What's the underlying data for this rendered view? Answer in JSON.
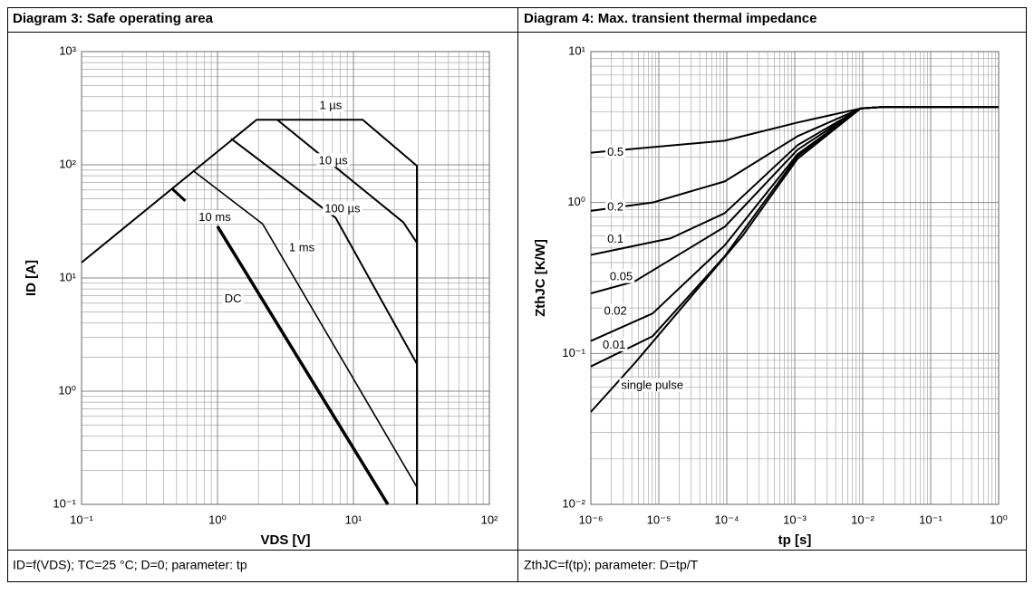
{
  "chart_data": [
    {
      "type": "line",
      "title": "Diagram 3: Safe operating area",
      "xlabel": "VDS [V]",
      "ylabel": "ID [A]",
      "xscale": "log",
      "yscale": "log",
      "grid": true,
      "xlim": [
        0.1,
        100
      ],
      "ylim": [
        0.1,
        1000
      ],
      "xticks": [
        {
          "value": 0.1,
          "label": "10⁻¹"
        },
        {
          "value": 1,
          "label": "10⁰"
        },
        {
          "value": 10,
          "label": "10¹"
        },
        {
          "value": 100,
          "label": "10²"
        }
      ],
      "yticks": [
        {
          "value": 0.1,
          "label": "10⁻¹"
        },
        {
          "value": 1,
          "label": "10⁰"
        },
        {
          "value": 10,
          "label": "10¹"
        },
        {
          "value": 100,
          "label": "10²"
        },
        {
          "value": 1000,
          "label": "10³"
        }
      ],
      "series": [
        {
          "name": "1 µs",
          "color": "#000000",
          "line_width": 2,
          "x": [
            0.1,
            1.94,
            11.7,
            29.3,
            29.3
          ],
          "values": [
            13.7,
            250,
            250,
            98,
            0.1
          ],
          "label_at": [
            6.8,
            331
          ]
        },
        {
          "name": "10 µs",
          "color": "#000000",
          "line_width": 2,
          "x": [
            2.75,
            23.3,
            29.3
          ],
          "values": [
            250,
            31,
            20.5
          ],
          "label_at": [
            7.1,
            108
          ]
        },
        {
          "name": "100 µs",
          "color": "#000000",
          "line_width": 2,
          "x": [
            1.26,
            7.4,
            29.3
          ],
          "values": [
            170,
            34,
            1.74
          ],
          "label_at": [
            8.3,
            40.5
          ]
        },
        {
          "name": "1 ms",
          "color": "#000000",
          "line_width": 1.6,
          "x": [
            0.66,
            2.15,
            29.3
          ],
          "values": [
            89,
            30,
            0.142
          ],
          "label_at": [
            4.17,
            18.4
          ]
        },
        {
          "name": "10 ms",
          "color": "#000000",
          "line_width": 3,
          "x": [
            0.46,
            0.58
          ],
          "values": [
            62,
            48
          ],
          "label_at": [
            0.955,
            34
          ]
        },
        {
          "name": "DC",
          "color": "#000000",
          "line_width": 3.5,
          "x": [
            1.0,
            17.9
          ],
          "values": [
            28.6,
            0.1
          ],
          "label_at": [
            1.3,
            6.5
          ]
        }
      ]
    },
    {
      "type": "line",
      "title": "Diagram 4: Max. transient thermal impedance",
      "xlabel": "tp [s]",
      "ylabel": "ZthJC [K/W]",
      "xscale": "log",
      "yscale": "log",
      "grid": true,
      "xlim": [
        1e-06,
        1
      ],
      "ylim": [
        0.01,
        10
      ],
      "xticks": [
        {
          "value": 1e-06,
          "label": "10⁻⁶"
        },
        {
          "value": 1e-05,
          "label": "10⁻⁵"
        },
        {
          "value": 0.0001,
          "label": "10⁻⁴"
        },
        {
          "value": 0.001,
          "label": "10⁻³"
        },
        {
          "value": 0.01,
          "label": "10⁻²"
        },
        {
          "value": 0.1,
          "label": "10⁻¹"
        },
        {
          "value": 1,
          "label": "10⁰"
        }
      ],
      "yticks": [
        {
          "value": 0.01,
          "label": "10⁻²"
        },
        {
          "value": 0.1,
          "label": "10⁻¹"
        },
        {
          "value": 1,
          "label": "10⁰"
        },
        {
          "value": 10,
          "label": "10¹"
        }
      ],
      "series": [
        {
          "name": "0.5",
          "color": "#000000",
          "line_width": 2,
          "x": [
            1e-06,
            9.3e-05,
            0.0011,
            0.0093,
            0.02,
            1
          ],
          "values": [
            2.14,
            2.57,
            3.39,
            4.2,
            4.3,
            4.3
          ],
          "label_at": [
            2.3e-06,
            2.14
          ]
        },
        {
          "name": "0.2",
          "color": "#000000",
          "line_width": 2,
          "x": [
            1e-06,
            8.1e-06,
            9.3e-05,
            0.0011,
            0.0093,
            0.02,
            1
          ],
          "values": [
            0.88,
            1.0,
            1.38,
            2.75,
            4.2,
            4.3,
            4.3
          ],
          "label_at": [
            2.3e-06,
            0.93
          ]
        },
        {
          "name": "0.1",
          "color": "#000000",
          "line_width": 2,
          "x": [
            1e-06,
            1.5e-05,
            9.3e-05,
            0.0011,
            0.0093,
            0.02,
            1
          ],
          "values": [
            0.45,
            0.58,
            0.85,
            2.4,
            4.2,
            4.3,
            4.3
          ],
          "label_at": [
            2.3e-06,
            0.57
          ]
        },
        {
          "name": "0.05",
          "color": "#000000",
          "line_width": 2,
          "x": [
            1e-06,
            4.4e-06,
            9.3e-05,
            0.0011,
            0.0093,
            0.02,
            1
          ],
          "values": [
            0.25,
            0.3,
            0.69,
            2.24,
            4.2,
            4.3,
            4.3
          ],
          "label_at": [
            2.8e-06,
            0.32
          ]
        },
        {
          "name": "0.02",
          "color": "#000000",
          "line_width": 2,
          "x": [
            1e-06,
            8.1e-06,
            9.3e-05,
            0.0011,
            0.0093,
            0.02,
            1
          ],
          "values": [
            0.121,
            0.184,
            0.52,
            2.09,
            4.2,
            4.3,
            4.3
          ],
          "label_at": [
            2.3e-06,
            0.19
          ]
        },
        {
          "name": "0.01",
          "color": "#000000",
          "line_width": 2,
          "x": [
            1e-06,
            8.1e-06,
            9.3e-05,
            0.0011,
            0.0093,
            0.02,
            1
          ],
          "values": [
            0.082,
            0.13,
            0.44,
            2.03,
            4.2,
            4.3,
            4.3
          ],
          "label_at": [
            2.2e-06,
            0.113
          ]
        },
        {
          "name": "single pulse",
          "color": "#000000",
          "line_width": 2,
          "x": [
            1e-06,
            4.4e-06,
            2.8e-05,
            0.00017,
            0.0011,
            0.0093,
            0.02,
            1
          ],
          "values": [
            0.041,
            0.086,
            0.23,
            0.6,
            1.95,
            4.2,
            4.3,
            4.3
          ],
          "label_at": [
            8e-06,
            0.061
          ]
        }
      ]
    }
  ],
  "captions": [
    "ID=f(VDS); TC=25 °C; D=0; parameter: tp",
    "ZthJC=f(tp); parameter: D=tp/T"
  ]
}
